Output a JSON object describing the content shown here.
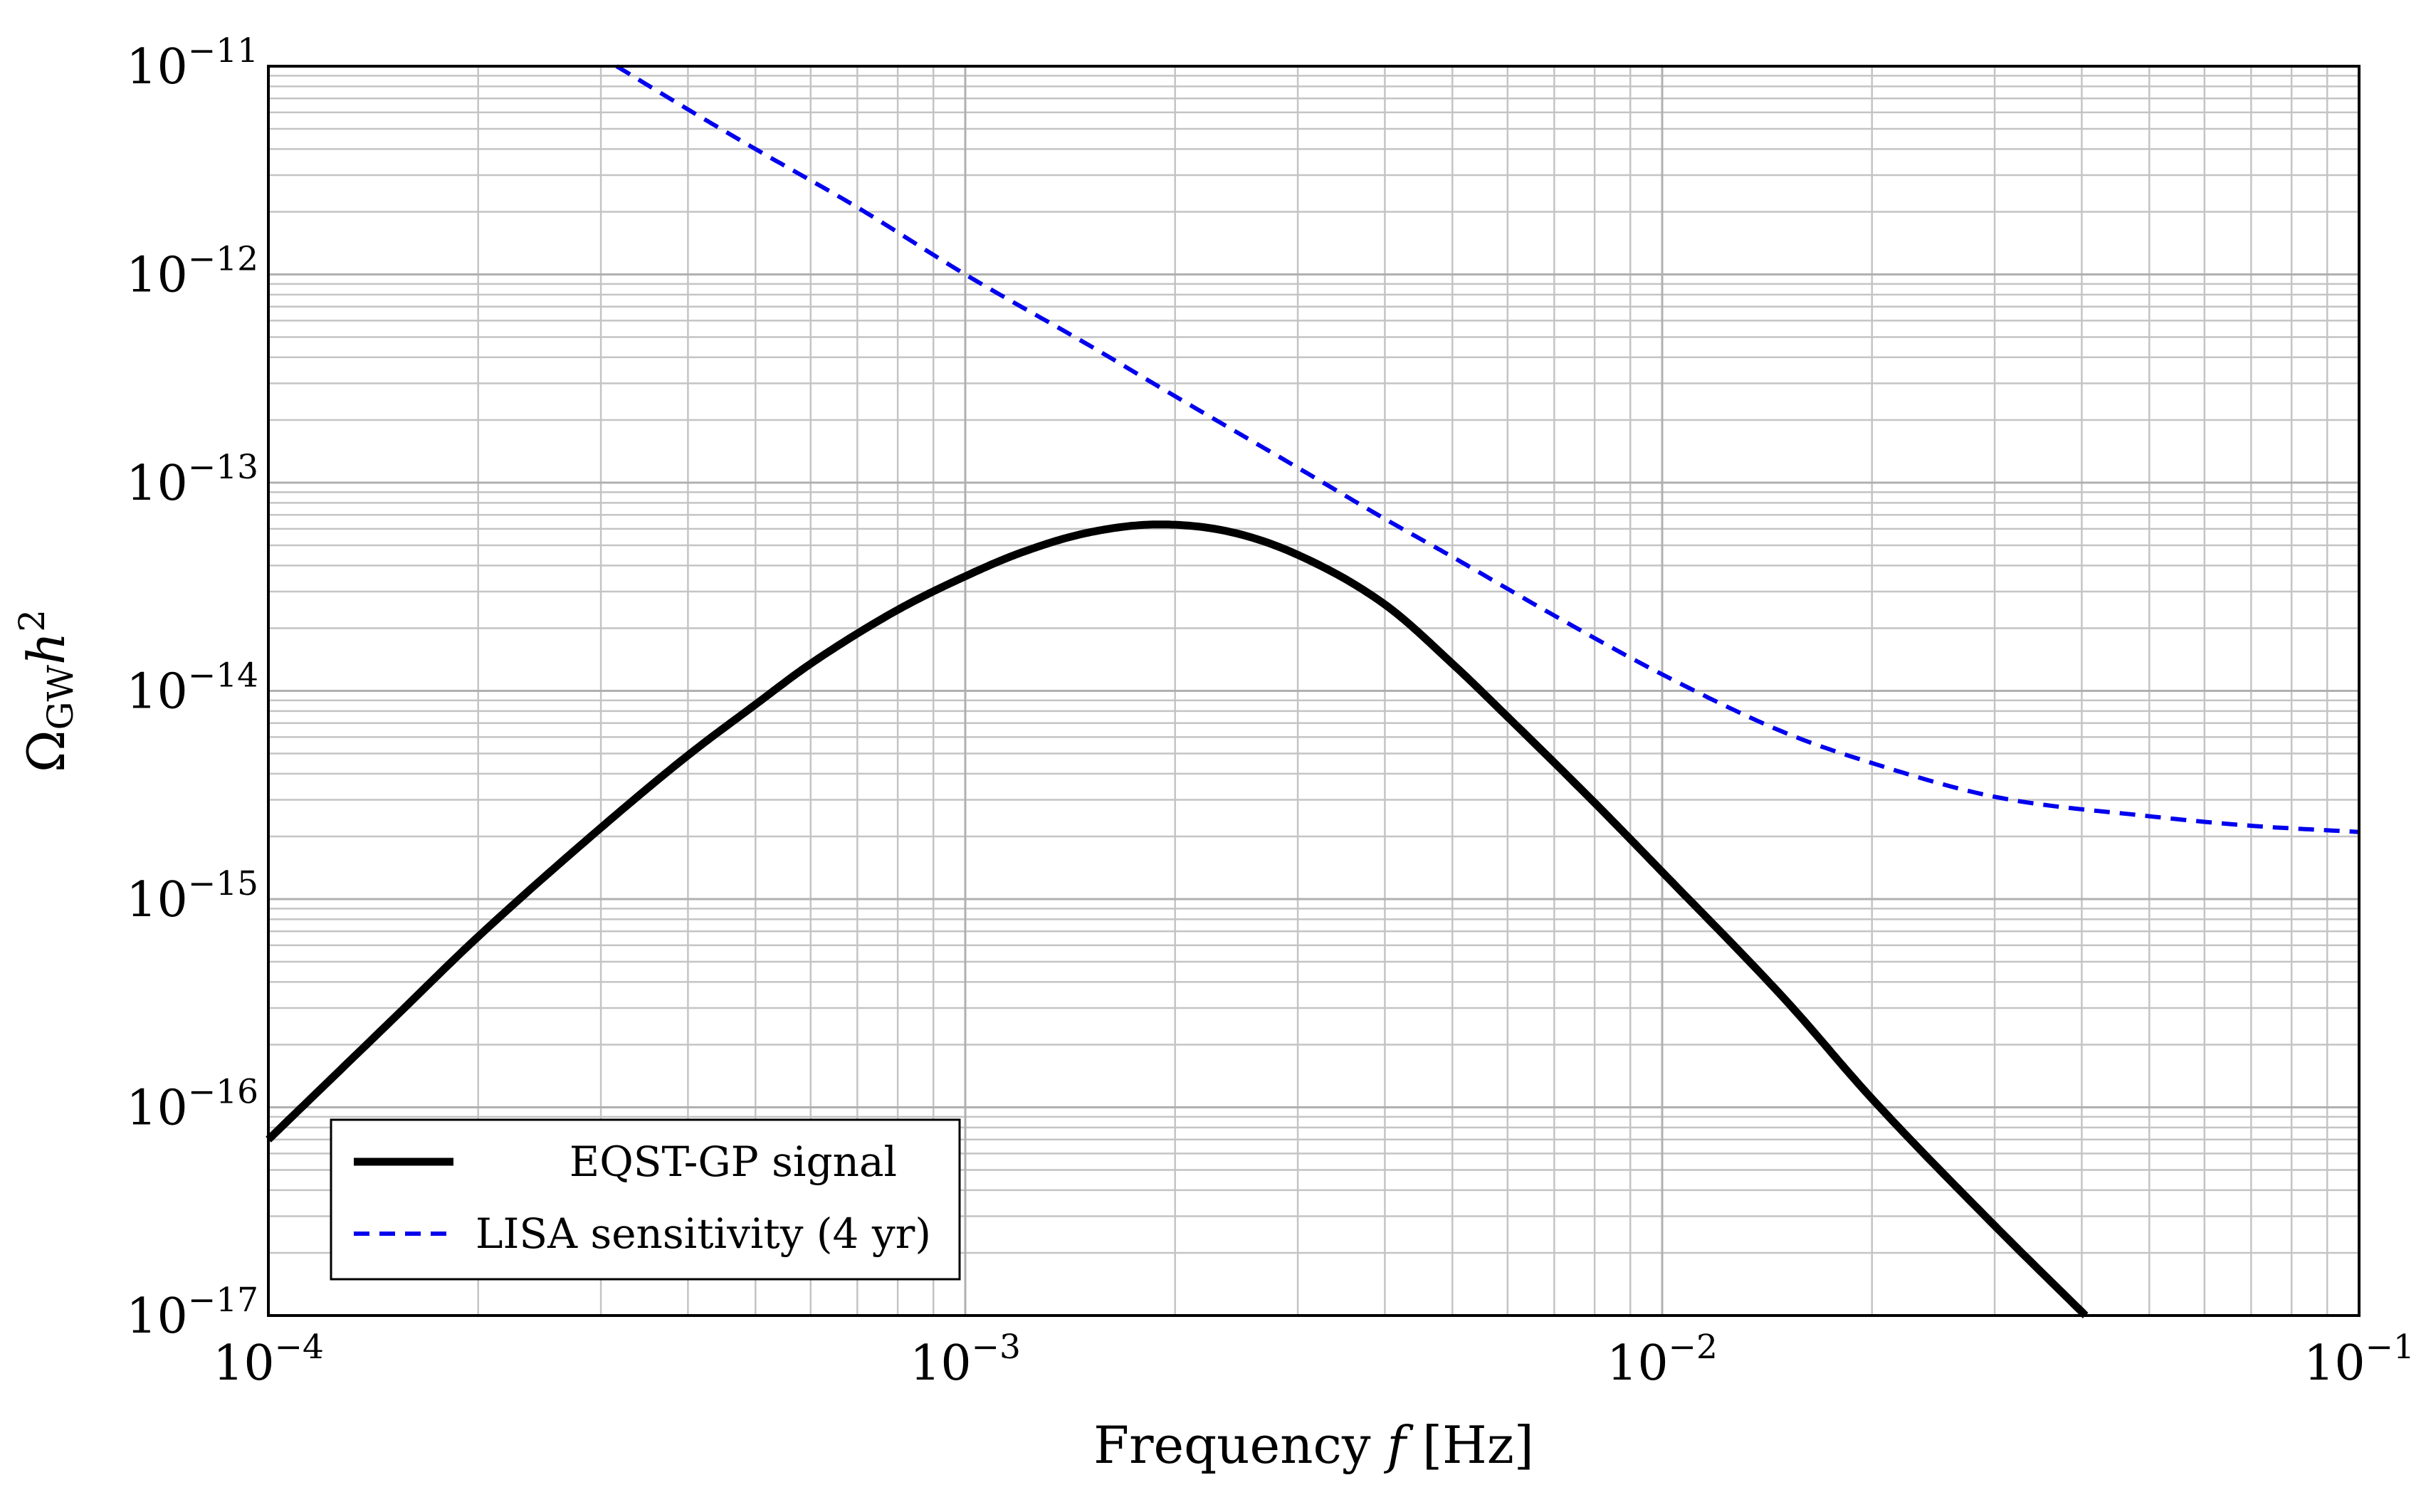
{
  "chart_data": {
    "type": "line",
    "title": "",
    "xlabel": {
      "prefix": "Frequency ",
      "var": "f",
      "suffix": " [Hz]"
    },
    "ylabel": {
      "symbol": "Ω",
      "sub": "GW",
      "var": "h",
      "sup": "2"
    },
    "xscale": "log",
    "yscale": "log",
    "xlim": [
      0.0001,
      0.1
    ],
    "ylim": [
      1e-17,
      1e-11
    ],
    "grid": true,
    "legend_position": "lower-left",
    "x_ticks": [
      {
        "base": "10",
        "exp": "−4"
      },
      {
        "base": "10",
        "exp": "−3"
      },
      {
        "base": "10",
        "exp": "−2"
      },
      {
        "base": "10",
        "exp": "−1"
      }
    ],
    "y_ticks": [
      {
        "base": "10",
        "exp": "−11"
      },
      {
        "base": "10",
        "exp": "−12"
      },
      {
        "base": "10",
        "exp": "−13"
      },
      {
        "base": "10",
        "exp": "−14"
      },
      {
        "base": "10",
        "exp": "−15"
      },
      {
        "base": "10",
        "exp": "−16"
      },
      {
        "base": "10",
        "exp": "−17"
      }
    ],
    "series": [
      {
        "name": "EQST-GP signal",
        "color": "#000000",
        "style": "solid",
        "x": [
          0.0001,
          0.00015,
          0.0002,
          0.0003,
          0.0004,
          0.0005,
          0.0006,
          0.0008,
          0.001,
          0.0012,
          0.0015,
          0.0019,
          0.0024,
          0.003,
          0.004,
          0.005,
          0.006,
          0.008,
          0.01,
          0.015,
          0.02,
          0.03,
          0.0405
        ],
        "y": [
          7e-17,
          2.6e-16,
          6.6e-16,
          2.2e-15,
          4.9e-15,
          8.6e-15,
          1.35e-14,
          2.45e-14,
          3.55e-14,
          4.6e-14,
          5.75e-14,
          6.3e-14,
          5.8e-14,
          4.5e-14,
          2.6e-14,
          1.35e-14,
          7.5e-15,
          2.9e-15,
          1.35e-15,
          3.3e-16,
          1.1e-16,
          2.7e-17,
          1e-17
        ]
      },
      {
        "name": "LISA sensitivity (4 yr)",
        "color": "#0000ee",
        "style": "dashed",
        "x": [
          0.000316,
          0.0004,
          0.0005,
          0.0007,
          0.001,
          0.0015,
          0.002,
          0.003,
          0.004,
          0.005,
          0.007,
          0.01,
          0.015,
          0.02,
          0.03,
          0.05,
          0.07,
          0.1
        ],
        "y": [
          1e-11,
          6.2e-12,
          4e-12,
          2.1e-12,
          1e-12,
          4.6e-13,
          2.6e-13,
          1.18e-13,
          6.7e-14,
          4.4e-14,
          2.3e-14,
          1.2e-14,
          6.3e-15,
          4.5e-15,
          3.1e-15,
          2.5e-15,
          2.25e-15,
          2.1e-15
        ]
      }
    ]
  }
}
